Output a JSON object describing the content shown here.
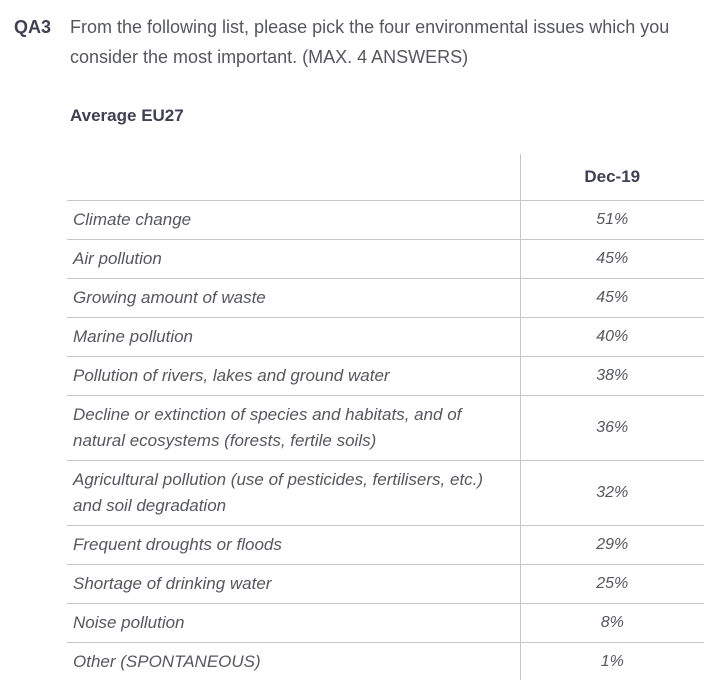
{
  "question": {
    "code": "QA3",
    "text": "From the following list, please pick the four environmental issues which you consider the most important. (MAX. 4 ANSWERS)",
    "subtitle": "Average EU27"
  },
  "chart_data": {
    "type": "table",
    "title": "Average EU27",
    "columns": [
      "",
      "Dec-19"
    ],
    "rows": [
      {
        "label": "Climate change",
        "value": "51%"
      },
      {
        "label": "Air pollution",
        "value": "45%"
      },
      {
        "label": "Growing amount of waste",
        "value": "45%"
      },
      {
        "label": "Marine pollution",
        "value": "40%"
      },
      {
        "label": "Pollution of rivers, lakes and ground water",
        "value": "38%"
      },
      {
        "label": "Decline or extinction of species and habitats, and of natural ecosystems (forests, fertile soils)",
        "value": "36%"
      },
      {
        "label": "Agricultural pollution (use of pesticides, fertilisers, etc.) and soil degradation",
        "value": "32%"
      },
      {
        "label": "Frequent droughts or floods",
        "value": "29%"
      },
      {
        "label": "Shortage of drinking water",
        "value": "25%"
      },
      {
        "label": "Noise pollution",
        "value": "8%"
      },
      {
        "label": "Other (SPONTANEOUS)",
        "value": "1%"
      }
    ]
  },
  "colors": {
    "dark_text": "#3f4051",
    "body_text": "#55565e",
    "row_text": "#56575f",
    "border": "#c6c7c9",
    "background": "#ffffff"
  }
}
